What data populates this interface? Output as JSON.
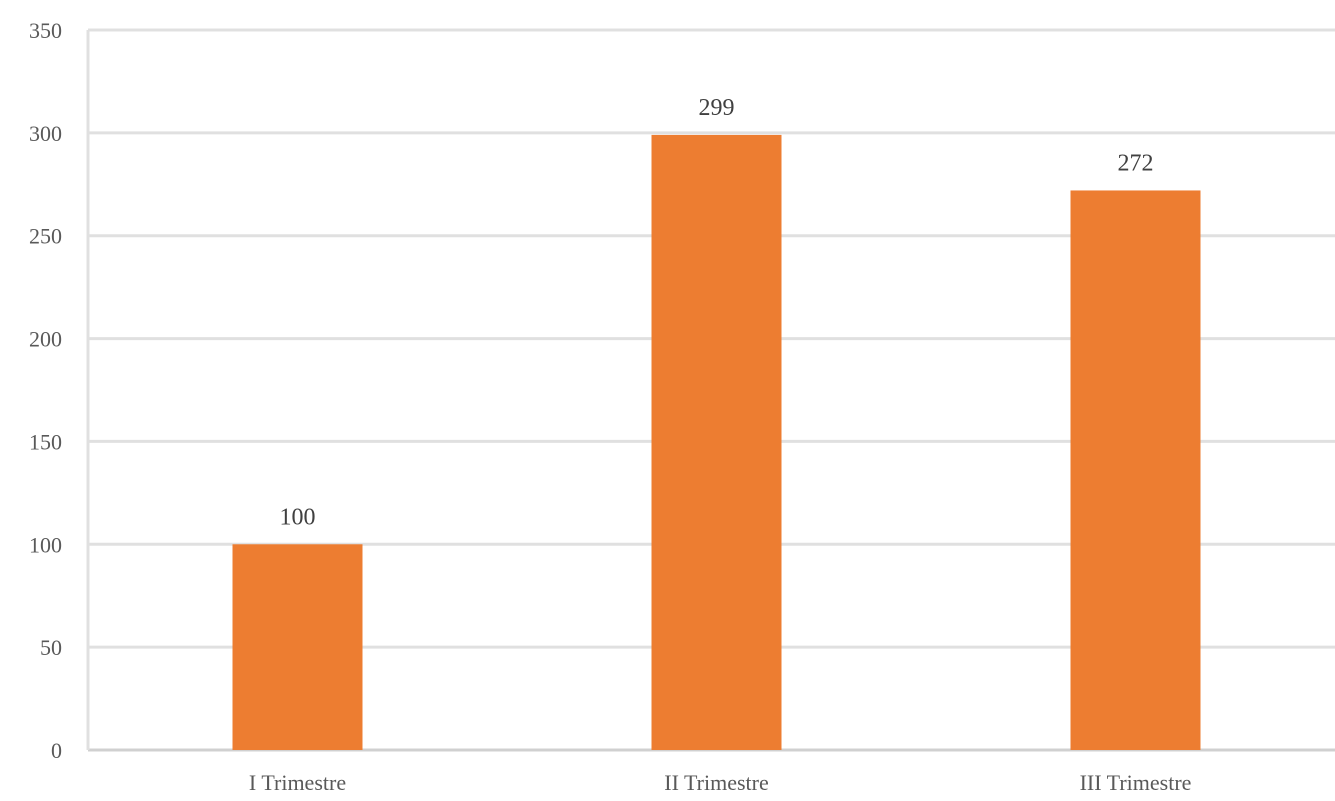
{
  "chart_data": {
    "type": "bar",
    "categories": [
      "I Trimestre",
      "II Trimestre",
      "III Trimestre"
    ],
    "values": [
      100,
      299,
      272
    ],
    "data_labels": [
      "100",
      "299",
      "272"
    ],
    "ylim": [
      0,
      350
    ],
    "yticks": [
      0,
      50,
      100,
      150,
      200,
      250,
      300,
      350
    ],
    "grid": true,
    "bar_color": "#ED7D31",
    "gridline_color": "#E0E0E0",
    "title": "",
    "xlabel": "",
    "ylabel": ""
  }
}
